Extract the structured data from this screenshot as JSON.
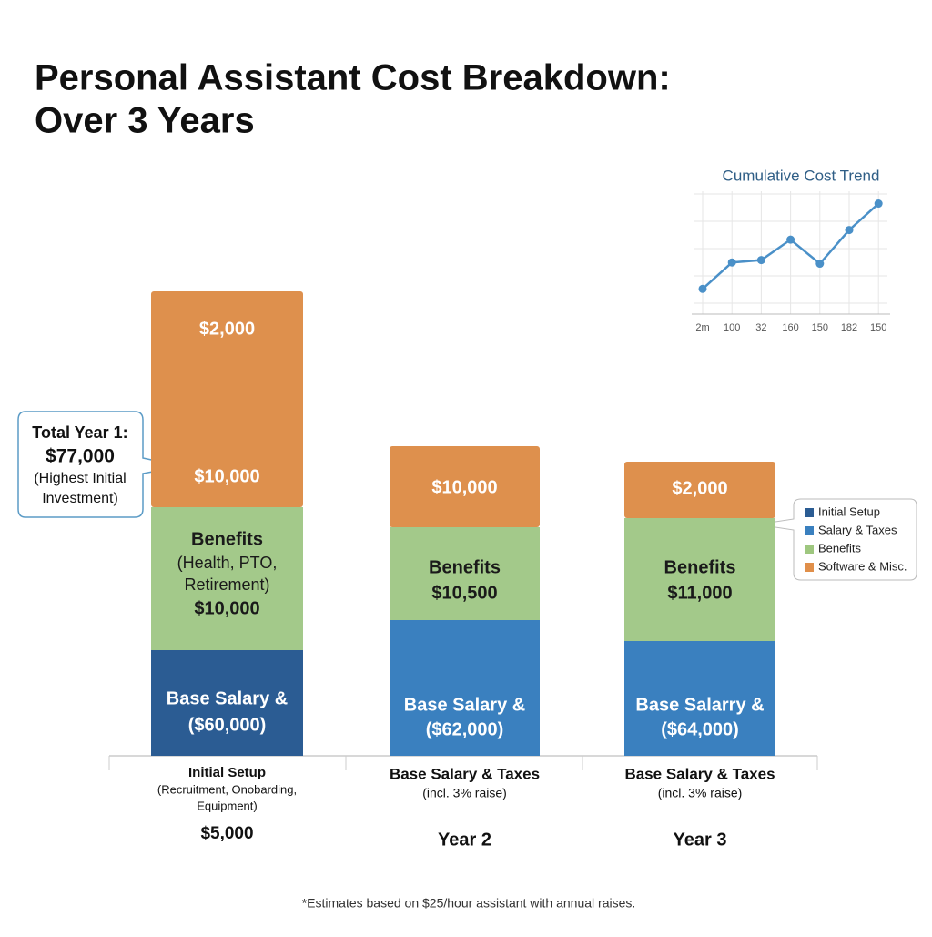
{
  "title": [
    "Personal Assistant Cost Breakdown:",
    "Over 3 Years"
  ],
  "bars": [
    {
      "segments": [
        {
          "color": "#2b5c93",
          "lines": [
            "Base Salary &",
            "($60,000)"
          ]
        },
        {
          "color": "#a3c98a",
          "lines": [
            "Benefits",
            "(Health, PTO,",
            "Retirement)",
            "$10,000"
          ]
        },
        {
          "color": "#de904d",
          "lines": [
            "$10,000",
            "$2,000"
          ]
        }
      ],
      "caption": [
        "Initial Setup",
        "(Recruitment, Onobarding,",
        "Equipment)",
        "$5,000"
      ]
    },
    {
      "segments": [
        {
          "color": "#3a80bf",
          "lines": [
            "Base Salary &",
            "($62,000)"
          ]
        },
        {
          "color": "#a3c98a",
          "lines": [
            "Benefits",
            "$10,500"
          ]
        },
        {
          "color": "#de904d",
          "lines": [
            "$10,000"
          ]
        }
      ],
      "caption": [
        "Base Salary & Taxes",
        "(incl. 3% raise)",
        "Year 2"
      ]
    },
    {
      "segments": [
        {
          "color": "#3a80bf",
          "lines": [
            "Base Salarry &",
            "($64,000)"
          ]
        },
        {
          "color": "#a3c98a",
          "lines": [
            "Benefits",
            "$11,000"
          ]
        },
        {
          "color": "#de904d",
          "lines": [
            "$2,000"
          ]
        }
      ],
      "caption": [
        "Base Salary & Taxes",
        "(incl. 3% raise)",
        "Year 3"
      ]
    }
  ],
  "callout": [
    "Total Year 1:",
    "$77,000",
    "(Highest Initial",
    "Investment)"
  ],
  "legend": [
    {
      "name": "Initial Setup",
      "color": "#2b5c93"
    },
    {
      "name": "Salary & Taxes",
      "color": "#3a80bf"
    },
    {
      "name": "Benefits",
      "color": "#9ec77f"
    },
    {
      "name": "Software & Misc.",
      "color": "#e08f4a"
    }
  ],
  "footnote": "*Estimates based on $25/hour assistant with annual raises.",
  "chart_data": {
    "type": "line",
    "title": "Cumulative Cost Trend",
    "categories": [
      "2m",
      "100",
      "32",
      "160",
      "150",
      "182",
      "150"
    ],
    "values": [
      21,
      43,
      45,
      62,
      42,
      70,
      92
    ],
    "ylim": [
      0,
      100
    ],
    "color": "#4a90c8",
    "grid": true
  }
}
